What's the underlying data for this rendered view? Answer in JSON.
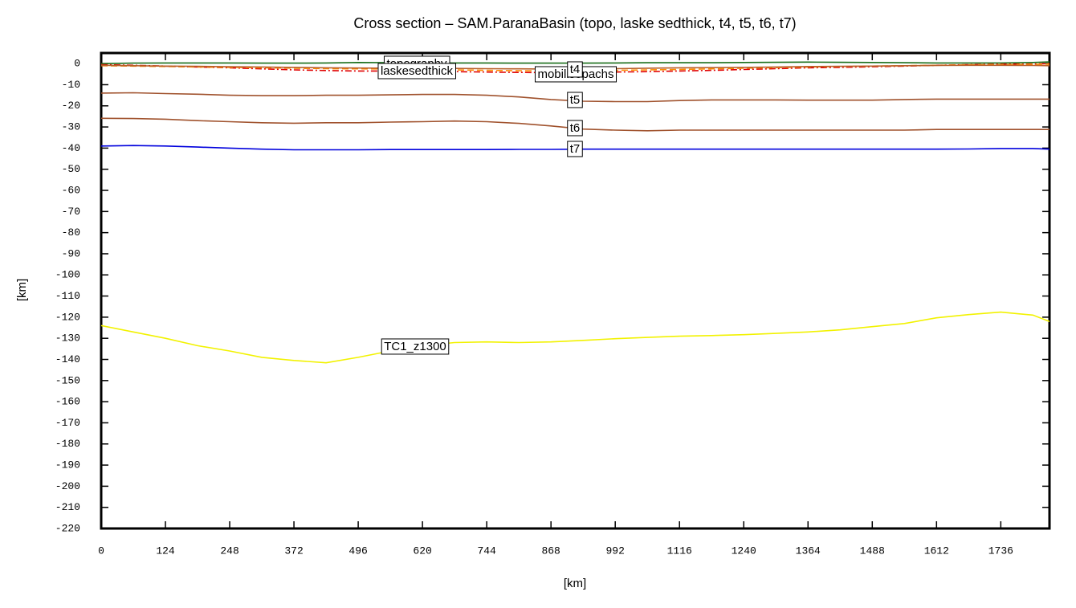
{
  "chart_data": {
    "type": "line",
    "title": "Cross section – SAM.ParanaBasin (topo, laske sedthick, t4, t5, t6, t7)",
    "x_label": "[km]",
    "y_label": "[km]",
    "x": [
      0,
      62,
      124,
      186,
      248,
      310,
      372,
      434,
      496,
      558,
      620,
      682,
      744,
      806,
      868,
      930,
      992,
      1054,
      1116,
      1178,
      1240,
      1302,
      1364,
      1426,
      1488,
      1550,
      1612,
      1674,
      1736,
      1798,
      1830
    ],
    "series": [
      {
        "name": "topography",
        "color": "#1a6e1a",
        "line_style": "solid",
        "values": [
          0,
          0.2,
          0.3,
          0.3,
          0.3,
          0.2,
          0.2,
          0.3,
          0.5,
          0.4,
          0.3,
          0.3,
          0.3,
          0.2,
          0.2,
          0.2,
          0.3,
          0.4,
          0.4,
          0.4,
          0.5,
          0.6,
          0.7,
          0.6,
          0.5,
          0.4,
          0.3,
          0.3,
          0.3,
          0.5,
          0.8
        ]
      },
      {
        "name": "laskesedthick",
        "color": "#e00000",
        "line_style": "dashdot",
        "values": [
          -0.5,
          -0.8,
          -1.2,
          -1.6,
          -2,
          -2.5,
          -3,
          -3.3,
          -3.5,
          -3.5,
          -3.6,
          -3.8,
          -4,
          -4.2,
          -4.3,
          -4.2,
          -4,
          -3.8,
          -3.5,
          -3.2,
          -2.8,
          -2.4,
          -2,
          -1.8,
          -1.5,
          -1.2,
          -0.8,
          -0.5,
          -0.3,
          -0.2,
          0
        ]
      },
      {
        "name": "mobilisopachs",
        "color": "#ff8c00",
        "line_style": "dashed",
        "values": [
          -1,
          -1.2,
          -1.4,
          -1.6,
          -1.8,
          -2,
          -2.2,
          -2.4,
          -2.5,
          -2.6,
          -2.8,
          -3,
          -3.2,
          -3.4,
          -3.5,
          -3.4,
          -3.2,
          -3,
          -2.8,
          -2.5,
          -2.2,
          -1.9,
          -1.6,
          -1.4,
          -1.2,
          -1,
          -0.8,
          -0.6,
          -0.5,
          -0.4,
          -0.3
        ]
      },
      {
        "name": "t4",
        "color": "#b8602a",
        "line_style": "solid",
        "values": [
          -0.8,
          -1,
          -1.2,
          -1.3,
          -1.5,
          -1.6,
          -1.8,
          -2,
          -2.1,
          -2.2,
          -2.2,
          -2.3,
          -2.4,
          -2.5,
          -2.6,
          -2.5,
          -2.4,
          -2.2,
          -2,
          -1.9,
          -1.8,
          -1.6,
          -1.4,
          -1.3,
          -1.2,
          -1,
          -0.9,
          -0.8,
          -0.8,
          -0.9,
          -1
        ]
      },
      {
        "name": "t5",
        "color": "#a0522d",
        "line_style": "solid",
        "values": [
          -14,
          -13.8,
          -14.2,
          -14.5,
          -15,
          -15.2,
          -15.2,
          -15,
          -15,
          -14.8,
          -14.6,
          -14.6,
          -15,
          -15.8,
          -17,
          -17.8,
          -18,
          -18,
          -17.5,
          -17.2,
          -17.2,
          -17.2,
          -17.3,
          -17.3,
          -17.3,
          -17,
          -16.8,
          -16.8,
          -16.8,
          -16.8,
          -16.8
        ]
      },
      {
        "name": "t6",
        "color": "#a0522d",
        "line_style": "solid",
        "values": [
          -25.9,
          -26,
          -26.3,
          -27,
          -27.5,
          -28,
          -28.2,
          -28,
          -28,
          -27.7,
          -27.5,
          -27.2,
          -27.5,
          -28.3,
          -29.5,
          -31,
          -31.5,
          -31.8,
          -31.5,
          -31.5,
          -31.5,
          -31.5,
          -31.5,
          -31.5,
          -31.5,
          -31.5,
          -31.2,
          -31.2,
          -31.2,
          -31.2,
          -31.2
        ]
      },
      {
        "name": "t7",
        "color": "#0000dd",
        "line_style": "solid",
        "values": [
          -39,
          -38.8,
          -39,
          -39.5,
          -40,
          -40.5,
          -40.8,
          -40.8,
          -40.8,
          -40.7,
          -40.7,
          -40.7,
          -40.7,
          -40.6,
          -40.6,
          -40.5,
          -40.5,
          -40.5,
          -40.5,
          -40.5,
          -40.5,
          -40.5,
          -40.5,
          -40.5,
          -40.5,
          -40.5,
          -40.5,
          -40.4,
          -40.2,
          -40.2,
          -40.5
        ]
      },
      {
        "name": "TC1_z1300",
        "color": "#f2f200",
        "line_style": "solid",
        "values": [
          -124,
          -127,
          -130,
          -133.5,
          -136,
          -139,
          -140.5,
          -141.6,
          -139,
          -136,
          -133.5,
          -132,
          -131.7,
          -132,
          -131.7,
          -131,
          -130.2,
          -129.6,
          -129,
          -128.7,
          -128.3,
          -127.7,
          -127,
          -126,
          -124.5,
          -123,
          -120.3,
          -118.8,
          -117.6,
          -119,
          -122
        ]
      }
    ],
    "xlim": [
      0,
      1830
    ],
    "ylim": [
      -220,
      5
    ],
    "xticks": [
      0,
      124,
      248,
      372,
      496,
      620,
      744,
      868,
      992,
      1116,
      1240,
      1364,
      1488,
      1612,
      1736
    ],
    "yticks": [
      0,
      -10,
      -20,
      -30,
      -40,
      -50,
      -60,
      -70,
      -80,
      -90,
      -100,
      -110,
      -120,
      -130,
      -140,
      -150,
      -160,
      -170,
      -180,
      -190,
      -200,
      -210,
      -220
    ],
    "grid": false
  }
}
